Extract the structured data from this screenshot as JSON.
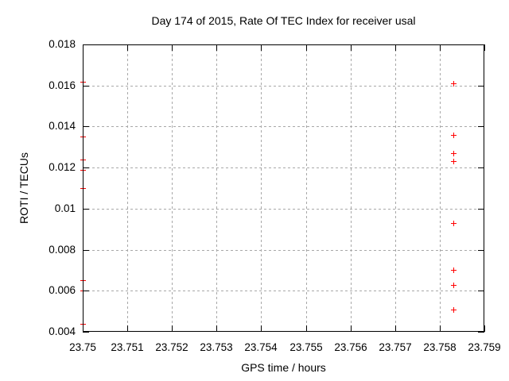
{
  "chart_data": {
    "type": "scatter",
    "title": "Day 174 of 2015, Rate Of TEC Index for receiver usal",
    "xlabel": "GPS time / hours",
    "ylabel": "ROTI / TECUs",
    "xlim": [
      23.75,
      23.759
    ],
    "ylim": [
      0.004,
      0.018
    ],
    "grid": true,
    "legend_position": "none",
    "marker_style": "plus",
    "marker_color": "#ff0000",
    "grid_color": "#a8a8a8",
    "axis_color": "#000000",
    "background_color": "#ffffff",
    "x_ticks": [
      {
        "value": 23.75,
        "label": "23.75"
      },
      {
        "value": 23.751,
        "label": "23.751"
      },
      {
        "value": 23.752,
        "label": "23.752"
      },
      {
        "value": 23.753,
        "label": "23.753"
      },
      {
        "value": 23.754,
        "label": "23.754"
      },
      {
        "value": 23.755,
        "label": "23.755"
      },
      {
        "value": 23.756,
        "label": "23.756"
      },
      {
        "value": 23.757,
        "label": "23.757"
      },
      {
        "value": 23.758,
        "label": "23.758"
      },
      {
        "value": 23.759,
        "label": "23.759"
      }
    ],
    "y_ticks": [
      {
        "value": 0.004,
        "label": "0.004"
      },
      {
        "value": 0.006,
        "label": "0.006"
      },
      {
        "value": 0.008,
        "label": "0.008"
      },
      {
        "value": 0.01,
        "label": "0.01"
      },
      {
        "value": 0.012,
        "label": "0.012"
      },
      {
        "value": 0.014,
        "label": "0.014"
      },
      {
        "value": 0.016,
        "label": "0.016"
      },
      {
        "value": 0.018,
        "label": "0.018"
      }
    ],
    "series": [
      {
        "name": "ROTI",
        "points": [
          {
            "x": 23.75,
            "y": 0.0162
          },
          {
            "x": 23.75,
            "y": 0.0135
          },
          {
            "x": 23.75,
            "y": 0.0124
          },
          {
            "x": 23.75,
            "y": 0.0119
          },
          {
            "x": 23.75,
            "y": 0.011
          },
          {
            "x": 23.75,
            "y": 0.0065
          },
          {
            "x": 23.75,
            "y": 0.006
          },
          {
            "x": 23.75,
            "y": 0.0044
          },
          {
            "x": 23.7583,
            "y": 0.0161
          },
          {
            "x": 23.7583,
            "y": 0.0136
          },
          {
            "x": 23.7583,
            "y": 0.0127
          },
          {
            "x": 23.7583,
            "y": 0.0123
          },
          {
            "x": 23.7583,
            "y": 0.0093
          },
          {
            "x": 23.7583,
            "y": 0.007
          },
          {
            "x": 23.7583,
            "y": 0.0063
          },
          {
            "x": 23.7583,
            "y": 0.0051
          }
        ]
      }
    ]
  }
}
